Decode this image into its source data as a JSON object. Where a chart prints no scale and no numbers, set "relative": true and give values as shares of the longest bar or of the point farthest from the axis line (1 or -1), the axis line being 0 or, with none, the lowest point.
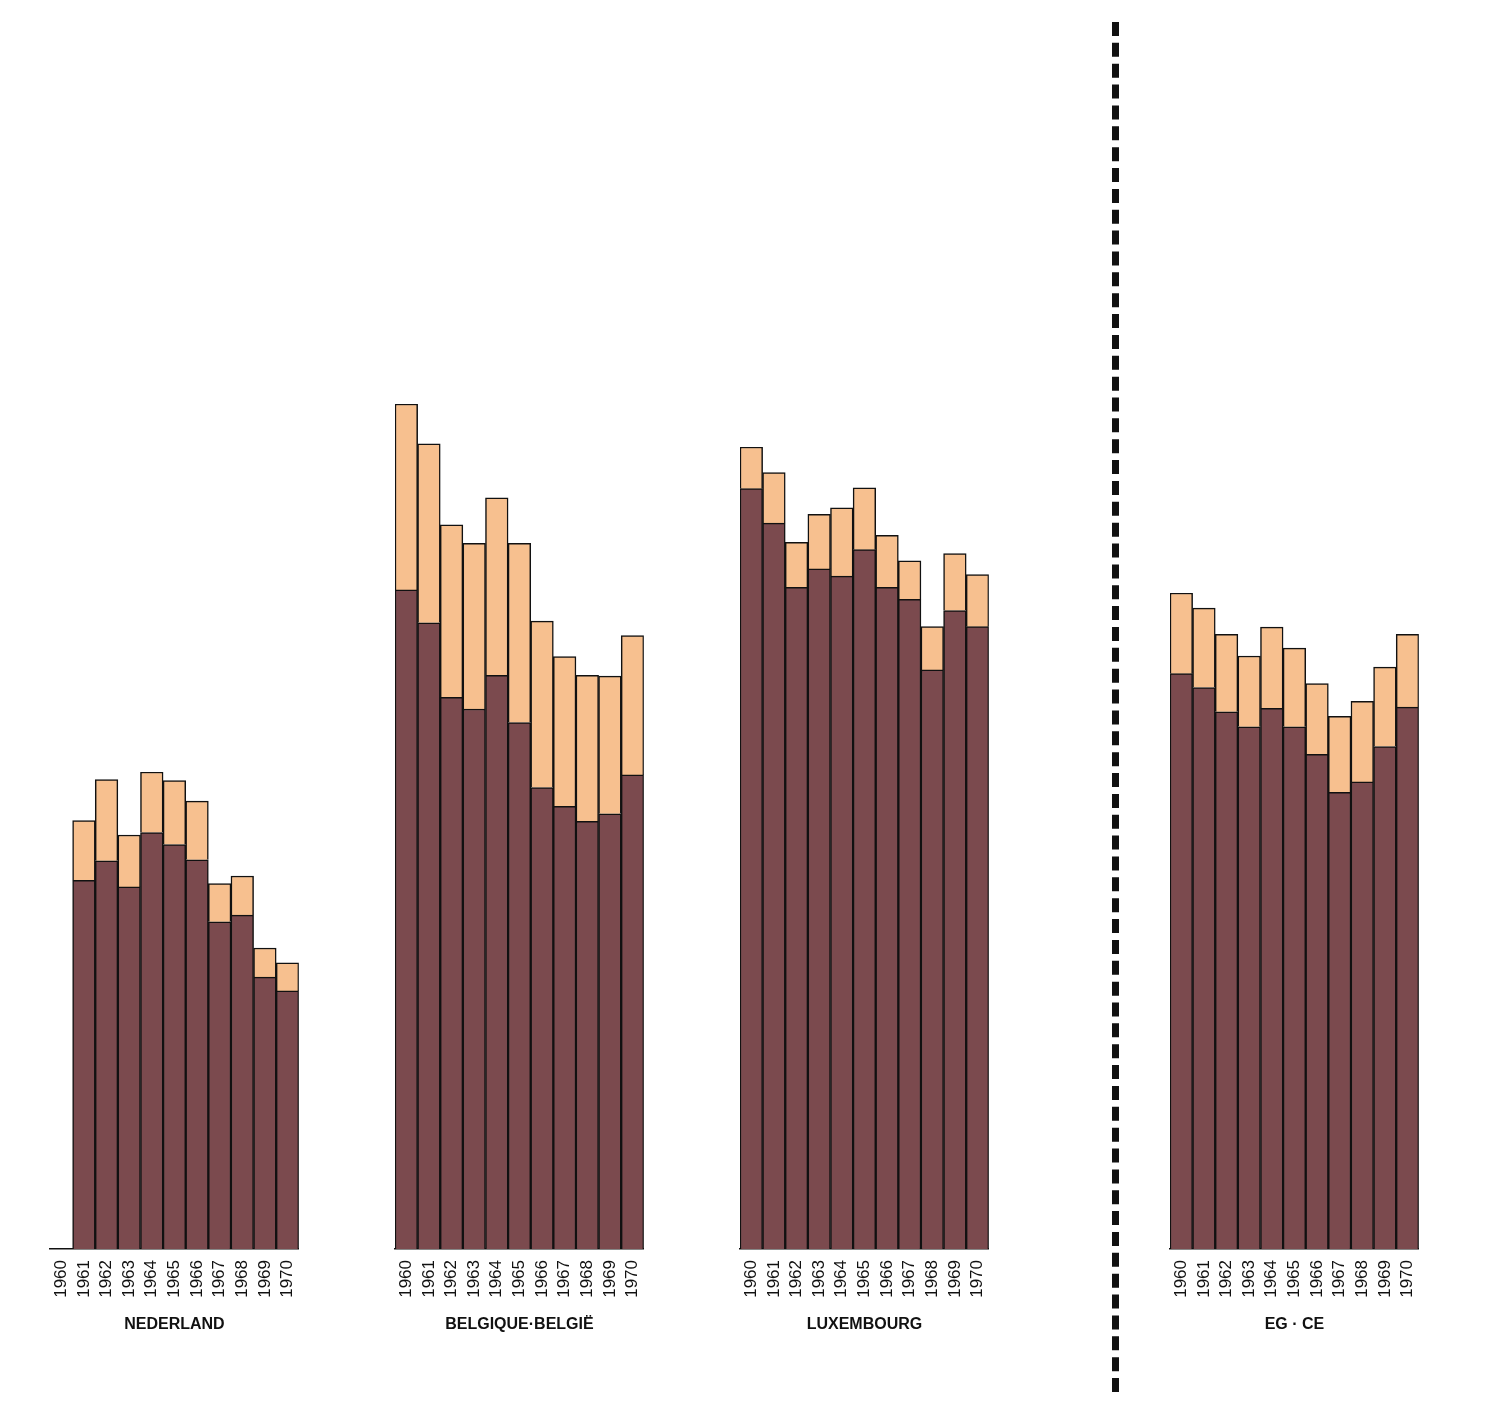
{
  "chart_data": [
    {
      "type": "bar",
      "xlabel": "NEDERLAND",
      "relative": true,
      "stacked": true,
      "categories": [
        "1960",
        "1961",
        "1962",
        "1963",
        "1964",
        "1965",
        "1966",
        "1967",
        "1968",
        "1969",
        "1970"
      ],
      "series": [
        {
          "color": "#7b4a4e",
          "values": [
            null,
            0.773,
            0.814,
            0.759,
            0.873,
            0.848,
            0.816,
            0.686,
            0.7,
            0.57,
            0.541
          ]
        },
        {
          "color": "#f7c08f",
          "values": [
            null,
            0.125,
            0.17,
            0.109,
            0.127,
            0.134,
            0.123,
            0.08,
            0.082,
            0.061,
            0.059
          ]
        }
      ]
    },
    {
      "type": "bar",
      "xlabel": "BELGIQUE·BELGIË",
      "relative": true,
      "stacked": true,
      "categories": [
        "1960",
        "1961",
        "1962",
        "1963",
        "1964",
        "1965",
        "1966",
        "1967",
        "1968",
        "1969",
        "1970"
      ],
      "series": [
        {
          "color": "#7b4a4e",
          "values": [
            0.78,
            0.741,
            0.653,
            0.639,
            0.679,
            0.623,
            0.546,
            0.524,
            0.506,
            0.515,
            0.561
          ]
        },
        {
          "color": "#f7c08f",
          "values": [
            0.22,
            0.212,
            0.204,
            0.196,
            0.21,
            0.212,
            0.197,
            0.177,
            0.173,
            0.163,
            0.165
          ]
        }
      ]
    },
    {
      "type": "bar",
      "xlabel": "LUXEMBOURG",
      "relative": true,
      "stacked": true,
      "categories": [
        "1960",
        "1961",
        "1962",
        "1963",
        "1964",
        "1965",
        "1966",
        "1967",
        "1968",
        "1969",
        "1970"
      ],
      "series": [
        {
          "color": "#7b4a4e",
          "values": [
            0.948,
            0.905,
            0.825,
            0.848,
            0.839,
            0.872,
            0.825,
            0.81,
            0.722,
            0.796,
            0.776
          ]
        },
        {
          "color": "#f7c08f",
          "values": [
            0.052,
            0.063,
            0.056,
            0.068,
            0.085,
            0.077,
            0.065,
            0.048,
            0.054,
            0.071,
            0.065
          ]
        }
      ]
    },
    {
      "type": "bar",
      "xlabel": "EG · CE",
      "relative": true,
      "stacked": true,
      "categories": [
        "1960",
        "1961",
        "1962",
        "1963",
        "1964",
        "1965",
        "1966",
        "1967",
        "1968",
        "1969",
        "1970"
      ],
      "series": [
        {
          "color": "#7b4a4e",
          "values": [
            0.877,
            0.856,
            0.819,
            0.796,
            0.824,
            0.796,
            0.754,
            0.696,
            0.712,
            0.766,
            0.826
          ]
        },
        {
          "color": "#f7c08f",
          "values": [
            0.123,
            0.121,
            0.118,
            0.108,
            0.124,
            0.12,
            0.108,
            0.116,
            0.123,
            0.121,
            0.111
          ]
        }
      ]
    }
  ]
}
